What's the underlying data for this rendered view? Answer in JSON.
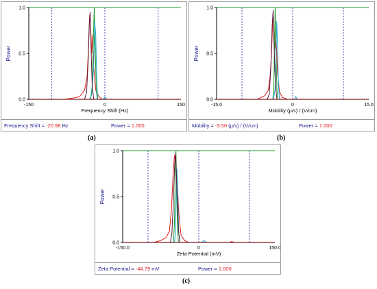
{
  "chart_data": [
    {
      "type": "line",
      "caption": "(a)",
      "xlabel": "Frequency Shift (Hz)",
      "ylabel": "Power",
      "xlim": [
        -150,
        150
      ],
      "ylim": [
        0,
        1
      ],
      "x_tick_labels": [
        "-150",
        "0",
        "150"
      ],
      "y_tick_labels": [
        "0.0",
        "0.5",
        "1.0"
      ],
      "dashed_gridlines_x": [
        -105,
        0,
        105
      ],
      "status": {
        "label": "Frequency Shift",
        "value": "-20.98",
        "unit": "Hz",
        "power_label": "Power",
        "power_value": "1.000",
        "separator": "="
      },
      "series": [
        {
          "color": "#e01a1a",
          "points": [
            [
              -150,
              0
            ],
            [
              -80,
              0
            ],
            [
              -55,
              0.02
            ],
            [
              -48,
              0.04
            ],
            [
              -40,
              0.1
            ],
            [
              -35,
              0.25
            ],
            [
              -32,
              0.6
            ],
            [
              -30,
              0.92
            ],
            [
              -28,
              0.8
            ],
            [
              -26,
              0.5
            ],
            [
              -24,
              0.7
            ],
            [
              -22,
              0.35
            ],
            [
              -18,
              0.1
            ],
            [
              -12,
              0.03
            ],
            [
              -5,
              0
            ],
            [
              150,
              0
            ]
          ]
        },
        {
          "color": "#1b9b2a",
          "points": [
            [
              -150,
              0
            ],
            [
              -28,
              0
            ],
            [
              -25,
              0.15
            ],
            [
              -23,
              0.6
            ],
            [
              -21,
              1.0
            ],
            [
              -19,
              0.55
            ],
            [
              -17,
              0.1
            ],
            [
              -15,
              0
            ],
            [
              150,
              0
            ]
          ]
        },
        {
          "color": "#22a7c9",
          "points": [
            [
              -150,
              0
            ],
            [
              -30,
              0
            ],
            [
              -26,
              0.05
            ],
            [
              -22,
              0.35
            ],
            [
              -20,
              0.85
            ],
            [
              -18,
              0.7
            ],
            [
              -16,
              0.2
            ],
            [
              -14,
              0
            ],
            [
              -5,
              0
            ],
            [
              0,
              0.02
            ],
            [
              5,
              0
            ],
            [
              150,
              0
            ]
          ]
        },
        {
          "color": "#5a1a3a",
          "points": [
            [
              -150,
              0
            ],
            [
              -40,
              0
            ],
            [
              -36,
              0.08
            ],
            [
              -33,
              0.4
            ],
            [
              -31,
              0.8
            ],
            [
              -29,
              0.95
            ],
            [
              -27,
              0.5
            ],
            [
              -25,
              0.15
            ],
            [
              -22,
              0
            ],
            [
              150,
              0
            ]
          ]
        }
      ]
    },
    {
      "type": "line",
      "caption": "(b)",
      "xlabel": "Mobility (µ/s) / (V/cm)",
      "ylabel": "Power",
      "xlim": [
        -15,
        15
      ],
      "ylim": [
        0,
        1
      ],
      "x_tick_labels": [
        "-15.0",
        "0",
        "15.0"
      ],
      "y_tick_labels": [
        "0.0",
        "0.5",
        "1.0"
      ],
      "dashed_gridlines_x": [
        -10,
        0,
        10
      ],
      "status": {
        "label": "Mobility",
        "value": "-3.50",
        "unit": "(µ/s) / (V/cm)",
        "power_label": "Power",
        "power_value": "1.000",
        "separator": "="
      },
      "series": [
        {
          "color": "#e01a1a",
          "points": [
            [
              -15,
              0
            ],
            [
              -7,
              0
            ],
            [
              -5.5,
              0.04
            ],
            [
              -4.8,
              0.1
            ],
            [
              -4.4,
              0.28
            ],
            [
              -4.1,
              0.6
            ],
            [
              -3.9,
              0.92
            ],
            [
              -3.7,
              0.75
            ],
            [
              -3.5,
              0.55
            ],
            [
              -3.3,
              0.72
            ],
            [
              -3.0,
              0.3
            ],
            [
              -2.6,
              0.08
            ],
            [
              -2,
              0.02
            ],
            [
              -1,
              0
            ],
            [
              15,
              0
            ]
          ]
        },
        {
          "color": "#1b9b2a",
          "points": [
            [
              -15,
              0
            ],
            [
              -3.9,
              0
            ],
            [
              -3.7,
              0.2
            ],
            [
              -3.55,
              0.7
            ],
            [
              -3.45,
              1.0
            ],
            [
              -3.3,
              0.5
            ],
            [
              -3.1,
              0.1
            ],
            [
              -2.9,
              0
            ],
            [
              15,
              0
            ]
          ]
        },
        {
          "color": "#22a7c9",
          "points": [
            [
              -15,
              0
            ],
            [
              -3.8,
              0
            ],
            [
              -3.5,
              0.1
            ],
            [
              -3.3,
              0.45
            ],
            [
              -3.15,
              0.85
            ],
            [
              -3.0,
              0.6
            ],
            [
              -2.8,
              0.15
            ],
            [
              -2.6,
              0
            ],
            [
              0.3,
              0
            ],
            [
              0.6,
              0.03
            ],
            [
              0.9,
              0
            ],
            [
              15,
              0
            ]
          ]
        },
        {
          "color": "#5a1a3a",
          "points": [
            [
              -15,
              0
            ],
            [
              -5,
              0
            ],
            [
              -4.6,
              0.06
            ],
            [
              -4.3,
              0.35
            ],
            [
              -4.05,
              0.8
            ],
            [
              -3.85,
              0.97
            ],
            [
              -3.65,
              0.55
            ],
            [
              -3.4,
              0.15
            ],
            [
              -3.1,
              0
            ],
            [
              15,
              0
            ]
          ]
        }
      ]
    },
    {
      "type": "line",
      "caption": "(c)",
      "xlabel": "Zeta Potential (mV)",
      "ylabel": "Power",
      "xlim": [
        -150,
        150
      ],
      "ylim": [
        0,
        1
      ],
      "x_tick_labels": [
        "-150.0",
        "0",
        "150.0"
      ],
      "y_tick_labels": [
        "0.0",
        "0.5",
        "1.0"
      ],
      "dashed_gridlines_x": [
        -100,
        0,
        100
      ],
      "status": {
        "label": "Zeta Potential",
        "value": "-44.79",
        "unit": "mV",
        "power_label": "Power",
        "power_value": "1.000",
        "separator": "="
      },
      "series": [
        {
          "color": "#e01a1a",
          "points": [
            [
              -150,
              0
            ],
            [
              -90,
              0
            ],
            [
              -75,
              0.02
            ],
            [
              -65,
              0.05
            ],
            [
              -58,
              0.12
            ],
            [
              -54,
              0.35
            ],
            [
              -51,
              0.7
            ],
            [
              -48,
              0.95
            ],
            [
              -45,
              0.85
            ],
            [
              -42,
              0.6
            ],
            [
              -39,
              0.3
            ],
            [
              -35,
              0.08
            ],
            [
              -28,
              0.02
            ],
            [
              -20,
              0
            ],
            [
              60,
              0
            ],
            [
              65,
              0.01
            ],
            [
              70,
              0
            ],
            [
              150,
              0
            ]
          ]
        },
        {
          "color": "#1b9b2a",
          "points": [
            [
              -150,
              0
            ],
            [
              -50,
              0
            ],
            [
              -48,
              0.2
            ],
            [
              -46.5,
              0.7
            ],
            [
              -45,
              1.0
            ],
            [
              -43.5,
              0.6
            ],
            [
              -42,
              0.15
            ],
            [
              -40,
              0
            ],
            [
              150,
              0
            ]
          ]
        },
        {
          "color": "#22a7c9",
          "points": [
            [
              -150,
              0
            ],
            [
              -48,
              0
            ],
            [
              -46,
              0.1
            ],
            [
              -44.5,
              0.5
            ],
            [
              -43,
              0.8
            ],
            [
              -41.5,
              0.55
            ],
            [
              -39.5,
              0.1
            ],
            [
              -37,
              0
            ],
            [
              5,
              0
            ],
            [
              10,
              0.02
            ],
            [
              15,
              0
            ],
            [
              150,
              0
            ]
          ]
        },
        {
          "color": "#5a1a3a",
          "points": [
            [
              -150,
              0
            ],
            [
              -56,
              0
            ],
            [
              -53,
              0.1
            ],
            [
              -50,
              0.45
            ],
            [
              -47.5,
              0.85
            ],
            [
              -45.5,
              0.97
            ],
            [
              -43,
              0.55
            ],
            [
              -40,
              0.12
            ],
            [
              -37,
              0
            ],
            [
              150,
              0
            ]
          ]
        }
      ]
    }
  ]
}
